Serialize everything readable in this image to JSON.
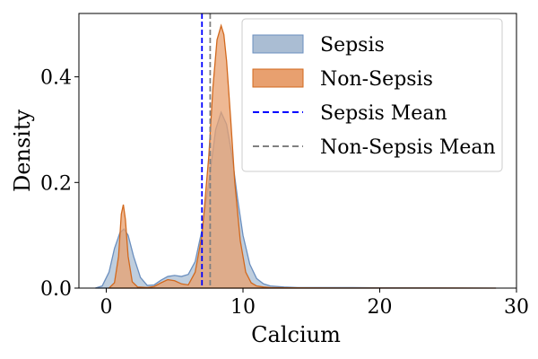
{
  "chart_data": {
    "type": "area",
    "title": "",
    "xlabel": "Calcium",
    "ylabel": "Density",
    "xlim": [
      -2,
      30
    ],
    "ylim": [
      0,
      0.52
    ],
    "xticks": [
      0,
      10,
      20,
      30
    ],
    "xtick_labels": [
      "0",
      "10",
      "20",
      "30"
    ],
    "yticks": [
      0.0,
      0.2,
      0.4
    ],
    "ytick_labels": [
      "0.0",
      "0.2",
      "0.4"
    ],
    "grid": false,
    "legend_position": "top-right",
    "series": [
      {
        "name": "Sepsis",
        "kind": "kde",
        "fill": "#aabdd3",
        "stroke": "#6b8fbf",
        "x": [
          -0.8,
          -0.3,
          0.2,
          0.6,
          1.0,
          1.3,
          1.6,
          2.0,
          2.5,
          3.0,
          3.5,
          4.0,
          4.5,
          5.0,
          5.5,
          6.0,
          6.5,
          7.0,
          7.5,
          8.0,
          8.4,
          8.8,
          9.2,
          9.6,
          10.0,
          10.5,
          11.0,
          11.5,
          12.0,
          13.0,
          14.0,
          16.0,
          18.0,
          20.0,
          24.0,
          28.5
        ],
        "y": [
          0.0,
          0.004,
          0.03,
          0.075,
          0.105,
          0.112,
          0.1,
          0.06,
          0.02,
          0.005,
          0.006,
          0.015,
          0.022,
          0.024,
          0.022,
          0.026,
          0.05,
          0.11,
          0.2,
          0.3,
          0.333,
          0.31,
          0.25,
          0.17,
          0.1,
          0.045,
          0.018,
          0.008,
          0.004,
          0.002,
          0.001,
          0.001,
          0.001,
          0.0005,
          0.0003,
          0.0
        ]
      },
      {
        "name": "Non-Sepsis",
        "kind": "kde",
        "fill": "#e8a06f",
        "stroke": "#d2691e",
        "x": [
          0.2,
          0.6,
          0.9,
          1.1,
          1.25,
          1.4,
          1.6,
          1.9,
          2.3,
          3.0,
          3.5,
          4.0,
          4.5,
          5.0,
          5.5,
          6.0,
          6.5,
          7.0,
          7.5,
          7.8,
          8.1,
          8.4,
          8.6,
          8.8,
          9.1,
          9.4,
          9.8,
          10.2,
          10.6,
          11.0,
          11.5,
          12.0,
          13.0,
          15.0,
          20.0,
          24.0,
          28.5
        ],
        "y": [
          0.0,
          0.01,
          0.06,
          0.14,
          0.158,
          0.13,
          0.06,
          0.012,
          0.002,
          0.001,
          0.003,
          0.01,
          0.016,
          0.014,
          0.008,
          0.006,
          0.03,
          0.1,
          0.25,
          0.38,
          0.47,
          0.497,
          0.48,
          0.43,
          0.32,
          0.2,
          0.09,
          0.03,
          0.01,
          0.004,
          0.002,
          0.001,
          0.0005,
          0.0003,
          0.0002,
          0.0001,
          0.0
        ]
      }
    ],
    "mean_lines": [
      {
        "name": "Sepsis Mean",
        "x": 7.0,
        "color": "#0000ff",
        "dash": "dashed"
      },
      {
        "name": "Non-Sepsis Mean",
        "x": 7.6,
        "color": "#808080",
        "dash": "dashed"
      }
    ],
    "legend": [
      {
        "label": "Sepsis",
        "kind": "patch",
        "fill": "#aabdd3",
        "stroke": "#6b8fbf"
      },
      {
        "label": "Non-Sepsis",
        "kind": "patch",
        "fill": "#e8a06f",
        "stroke": "#d2691e"
      },
      {
        "label": "Sepsis Mean",
        "kind": "line",
        "stroke": "#0000ff"
      },
      {
        "label": "Non-Sepsis Mean",
        "kind": "line",
        "stroke": "#808080"
      }
    ]
  }
}
